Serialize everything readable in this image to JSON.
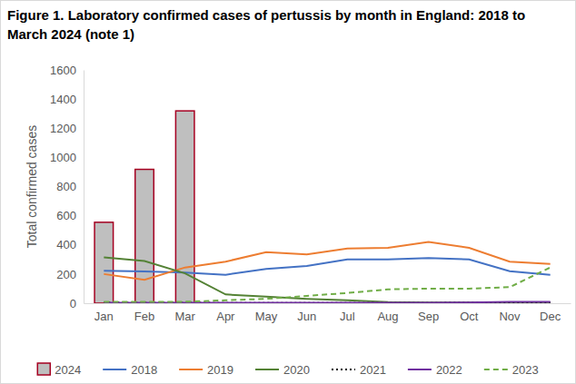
{
  "chart_data": {
    "type": "line",
    "title": "Figure 1. Laboratory confirmed cases of pertussis by month in England: 2018 to March 2024 (note 1)",
    "y_label": "Total confirmed cases",
    "categories": [
      "Jan",
      "Feb",
      "Mar",
      "Apr",
      "May",
      "Jun",
      "Jul",
      "Aug",
      "Sep",
      "Oct",
      "Nov",
      "Dec"
    ],
    "ylim": [
      0,
      1600
    ],
    "yticks": [
      0,
      200,
      400,
      600,
      800,
      1000,
      1200,
      1400,
      1600
    ],
    "grid": false,
    "legend": "bottom",
    "series": [
      {
        "name": "2024",
        "type": "bar",
        "color": "#bfbfbf",
        "values": [
          555,
          918,
          1319,
          null,
          null,
          null,
          null,
          null,
          null,
          null,
          null,
          null
        ]
      },
      {
        "name": "2018",
        "type": "line",
        "color": "#4472c4",
        "line_style": "solid",
        "values": [
          222,
          218,
          210,
          195,
          235,
          255,
          300,
          300,
          310,
          300,
          220,
          195
        ]
      },
      {
        "name": "2019",
        "type": "line",
        "color": "#ed7d31",
        "line_style": "solid",
        "values": [
          200,
          160,
          245,
          285,
          350,
          335,
          375,
          380,
          420,
          380,
          285,
          270
        ]
      },
      {
        "name": "2020",
        "type": "line",
        "color": "#548235",
        "line_style": "solid",
        "values": [
          315,
          290,
          205,
          60,
          45,
          30,
          20,
          8,
          5,
          5,
          5,
          5
        ]
      },
      {
        "name": "2021",
        "type": "line",
        "color": "#000000",
        "line_style": "dotted",
        "values": [
          5,
          3,
          3,
          2,
          2,
          2,
          2,
          2,
          2,
          3,
          5,
          5
        ]
      },
      {
        "name": "2022",
        "type": "line",
        "color": "#7030a0",
        "line_style": "solid",
        "values": [
          3,
          3,
          3,
          3,
          3,
          3,
          3,
          3,
          3,
          5,
          10,
          10
        ]
      },
      {
        "name": "2023",
        "type": "line",
        "color": "#70ad47",
        "line_style": "dashed",
        "values": [
          10,
          10,
          10,
          20,
          30,
          50,
          70,
          95,
          100,
          100,
          110,
          245
        ]
      }
    ]
  }
}
